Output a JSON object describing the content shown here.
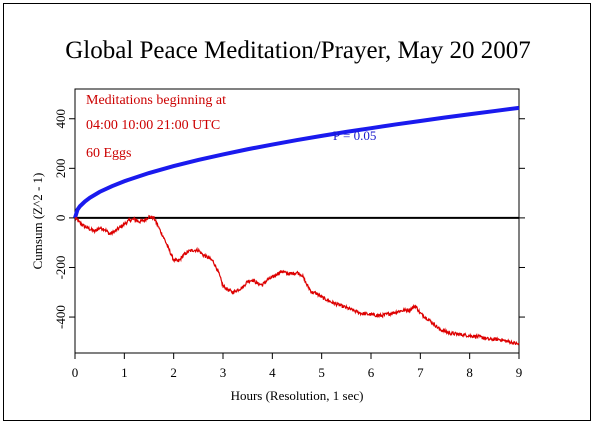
{
  "chart_data": {
    "type": "line",
    "title": "Global Peace Meditation/Prayer, May 20 2007",
    "xlabel": "Hours (Resolution, 1 sec)",
    "ylabel": "Cumsum (Z^2 - 1)",
    "xlim": [
      0,
      9
    ],
    "ylim": [
      -545,
      520
    ],
    "x_ticks": [
      0,
      1,
      2,
      3,
      4,
      5,
      6,
      7,
      8,
      9
    ],
    "y_ticks": [
      -400,
      -200,
      0,
      200,
      400
    ],
    "y_ticks_right": [
      -400,
      -200,
      0,
      200,
      400
    ],
    "y_tick_labels": [
      "-400",
      "-200",
      "0",
      "200",
      "400"
    ],
    "grid": false,
    "zero_line": true,
    "annotations": {
      "lines": [
        "Meditations beginning at",
        "04:00 10:00 21:00 UTC",
        "60 Eggs"
      ],
      "color": "#cc0000",
      "p_label": "P = 0.05",
      "p_color": "#1a1acc"
    },
    "series": [
      {
        "role": "p05-envelope",
        "color": "#1a1aee",
        "x": [
          0,
          0.05,
          0.1,
          0.2,
          0.3,
          0.5,
          0.75,
          1,
          1.5,
          2,
          2.5,
          3,
          3.5,
          4,
          4.5,
          5,
          5.5,
          6,
          6.5,
          7,
          7.5,
          8,
          8.5,
          9
        ],
        "y": [
          0,
          33,
          47,
          66,
          81,
          105,
          128,
          148,
          181,
          209,
          234,
          256,
          277,
          296,
          314,
          331,
          347,
          362,
          377,
          391,
          405,
          418,
          431,
          444
        ]
      },
      {
        "role": "cumulative-deviation",
        "color": "#dd0000",
        "x": [
          0,
          0.1,
          0.2,
          0.3,
          0.4,
          0.5,
          0.6,
          0.7,
          0.8,
          0.9,
          1.0,
          1.1,
          1.2,
          1.3,
          1.4,
          1.5,
          1.6,
          1.7,
          1.8,
          1.9,
          2.0,
          2.1,
          2.2,
          2.3,
          2.4,
          2.5,
          2.6,
          2.7,
          2.8,
          2.9,
          3.0,
          3.1,
          3.2,
          3.3,
          3.4,
          3.5,
          3.6,
          3.7,
          3.8,
          3.9,
          4.0,
          4.1,
          4.2,
          4.3,
          4.4,
          4.5,
          4.6,
          4.7,
          4.8,
          4.9,
          5.0,
          5.2,
          5.4,
          5.6,
          5.8,
          6.0,
          6.2,
          6.4,
          6.6,
          6.8,
          6.9,
          7.0,
          7.2,
          7.4,
          7.6,
          7.8,
          8.0,
          8.2,
          8.4,
          8.6,
          8.8,
          9.0
        ],
        "y": [
          0,
          -20,
          -35,
          -45,
          -55,
          -40,
          -45,
          -65,
          -55,
          -40,
          -25,
          -10,
          -5,
          -15,
          -10,
          5,
          0,
          -40,
          -80,
          -125,
          -170,
          -175,
          -150,
          -135,
          -130,
          -130,
          -150,
          -160,
          -175,
          -215,
          -275,
          -290,
          -300,
          -290,
          -280,
          -255,
          -250,
          -265,
          -270,
          -250,
          -240,
          -225,
          -215,
          -225,
          -225,
          -220,
          -230,
          -270,
          -300,
          -305,
          -320,
          -340,
          -355,
          -370,
          -385,
          -390,
          -395,
          -385,
          -375,
          -370,
          -355,
          -385,
          -415,
          -450,
          -465,
          -470,
          -475,
          -480,
          -490,
          -490,
          -500,
          -510
        ]
      }
    ]
  }
}
